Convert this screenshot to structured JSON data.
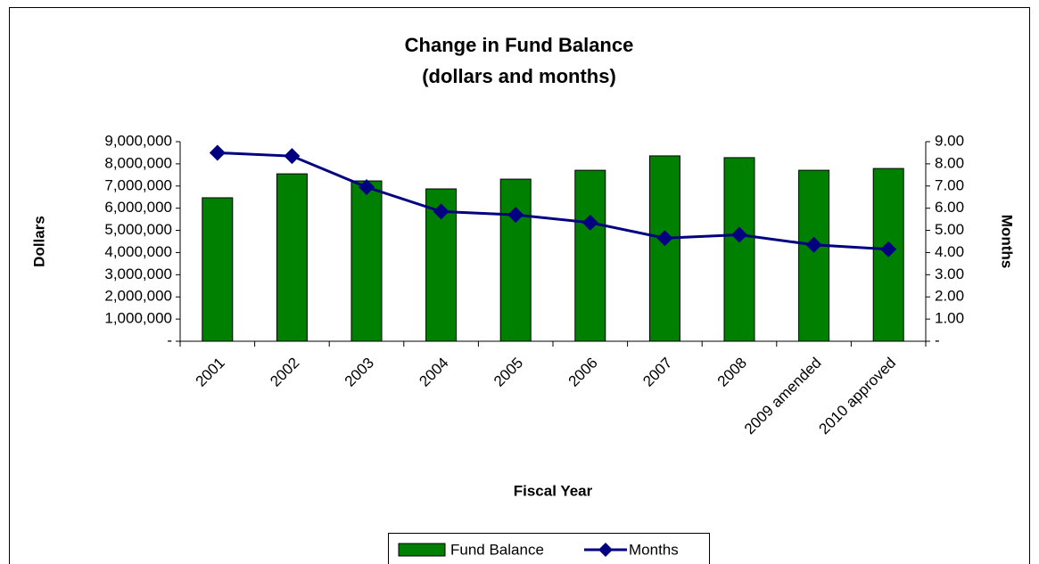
{
  "chart_data": {
    "type": "bar",
    "title": "Change in Fund Balance",
    "subtitle": "(dollars and months)",
    "x_label": "Fiscal Year",
    "y_label": "Dollars",
    "y2_label": "Months",
    "categories": [
      "2001",
      "2002",
      "2003",
      "2004",
      "2005",
      "2006",
      "2007",
      "2008",
      "2009 amended",
      "2010 approved"
    ],
    "series": [
      {
        "name": "Fund Balance",
        "type": "bar",
        "color": "#008000",
        "values": [
          6470000,
          7550000,
          7230000,
          6870000,
          7310000,
          7710000,
          8360000,
          8280000,
          7710000,
          7790000
        ]
      },
      {
        "name": "Months",
        "type": "line",
        "axis": "y2",
        "color": "#000080",
        "values": [
          8.5,
          8.35,
          6.95,
          5.85,
          5.7,
          5.35,
          4.65,
          4.8,
          4.35,
          4.15
        ]
      }
    ],
    "ylim": [
      0,
      9000000
    ],
    "yticks": [
      {
        "value": 0,
        "label": "-"
      },
      {
        "value": 1000000,
        "label": "1,000,000"
      },
      {
        "value": 2000000,
        "label": "2,000,000"
      },
      {
        "value": 3000000,
        "label": "3,000,000"
      },
      {
        "value": 4000000,
        "label": "4,000,000"
      },
      {
        "value": 5000000,
        "label": "5,000,000"
      },
      {
        "value": 6000000,
        "label": "6,000,000"
      },
      {
        "value": 7000000,
        "label": "7,000,000"
      },
      {
        "value": 8000000,
        "label": "8,000,000"
      },
      {
        "value": 9000000,
        "label": "9,000,000"
      }
    ],
    "y2lim": [
      0,
      9
    ],
    "y2ticks": [
      {
        "value": 0,
        "label": "-"
      },
      {
        "value": 1,
        "label": "1.00"
      },
      {
        "value": 2,
        "label": "2.00"
      },
      {
        "value": 3,
        "label": "3.00"
      },
      {
        "value": 4,
        "label": "4.00"
      },
      {
        "value": 5,
        "label": "5.00"
      },
      {
        "value": 6,
        "label": "6.00"
      },
      {
        "value": 7,
        "label": "7.00"
      },
      {
        "value": 8,
        "label": "8.00"
      },
      {
        "value": 9,
        "label": "9.00"
      }
    ],
    "legend": "bottom"
  }
}
